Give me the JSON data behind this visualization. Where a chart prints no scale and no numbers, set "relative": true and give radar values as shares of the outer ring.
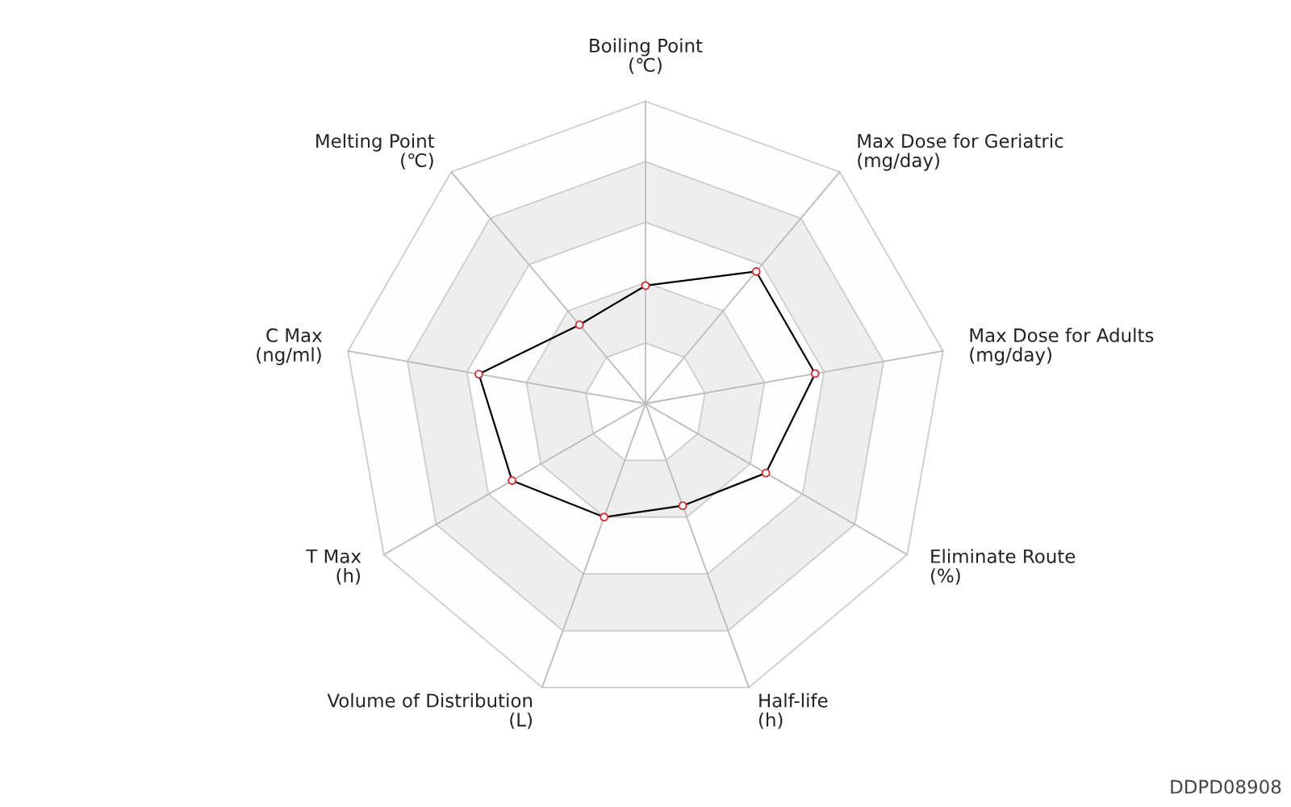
{
  "chart_data": {
    "type": "radar",
    "relative": true,
    "categories": [
      "Boiling Point\n(℃)",
      "Max Dose for Geriatric\n(mg/day)",
      "Max Dose for Adults\n(mg/day)",
      "Eliminate Route\n(%)",
      "Half-life\n(h)",
      "Volume of Distribution\n(L)",
      "T Max\n(h)",
      "C Max\n(ng/ml)",
      "Melting Point\n(℃)"
    ],
    "series": [
      {
        "color": "#000000",
        "values": [
          0.39,
          0.57,
          0.57,
          0.46,
          0.36,
          0.4,
          0.51,
          0.56,
          0.34
        ]
      }
    ],
    "marker": "circle",
    "grid": true,
    "annotations": [
      "DDPD08908"
    ]
  }
}
